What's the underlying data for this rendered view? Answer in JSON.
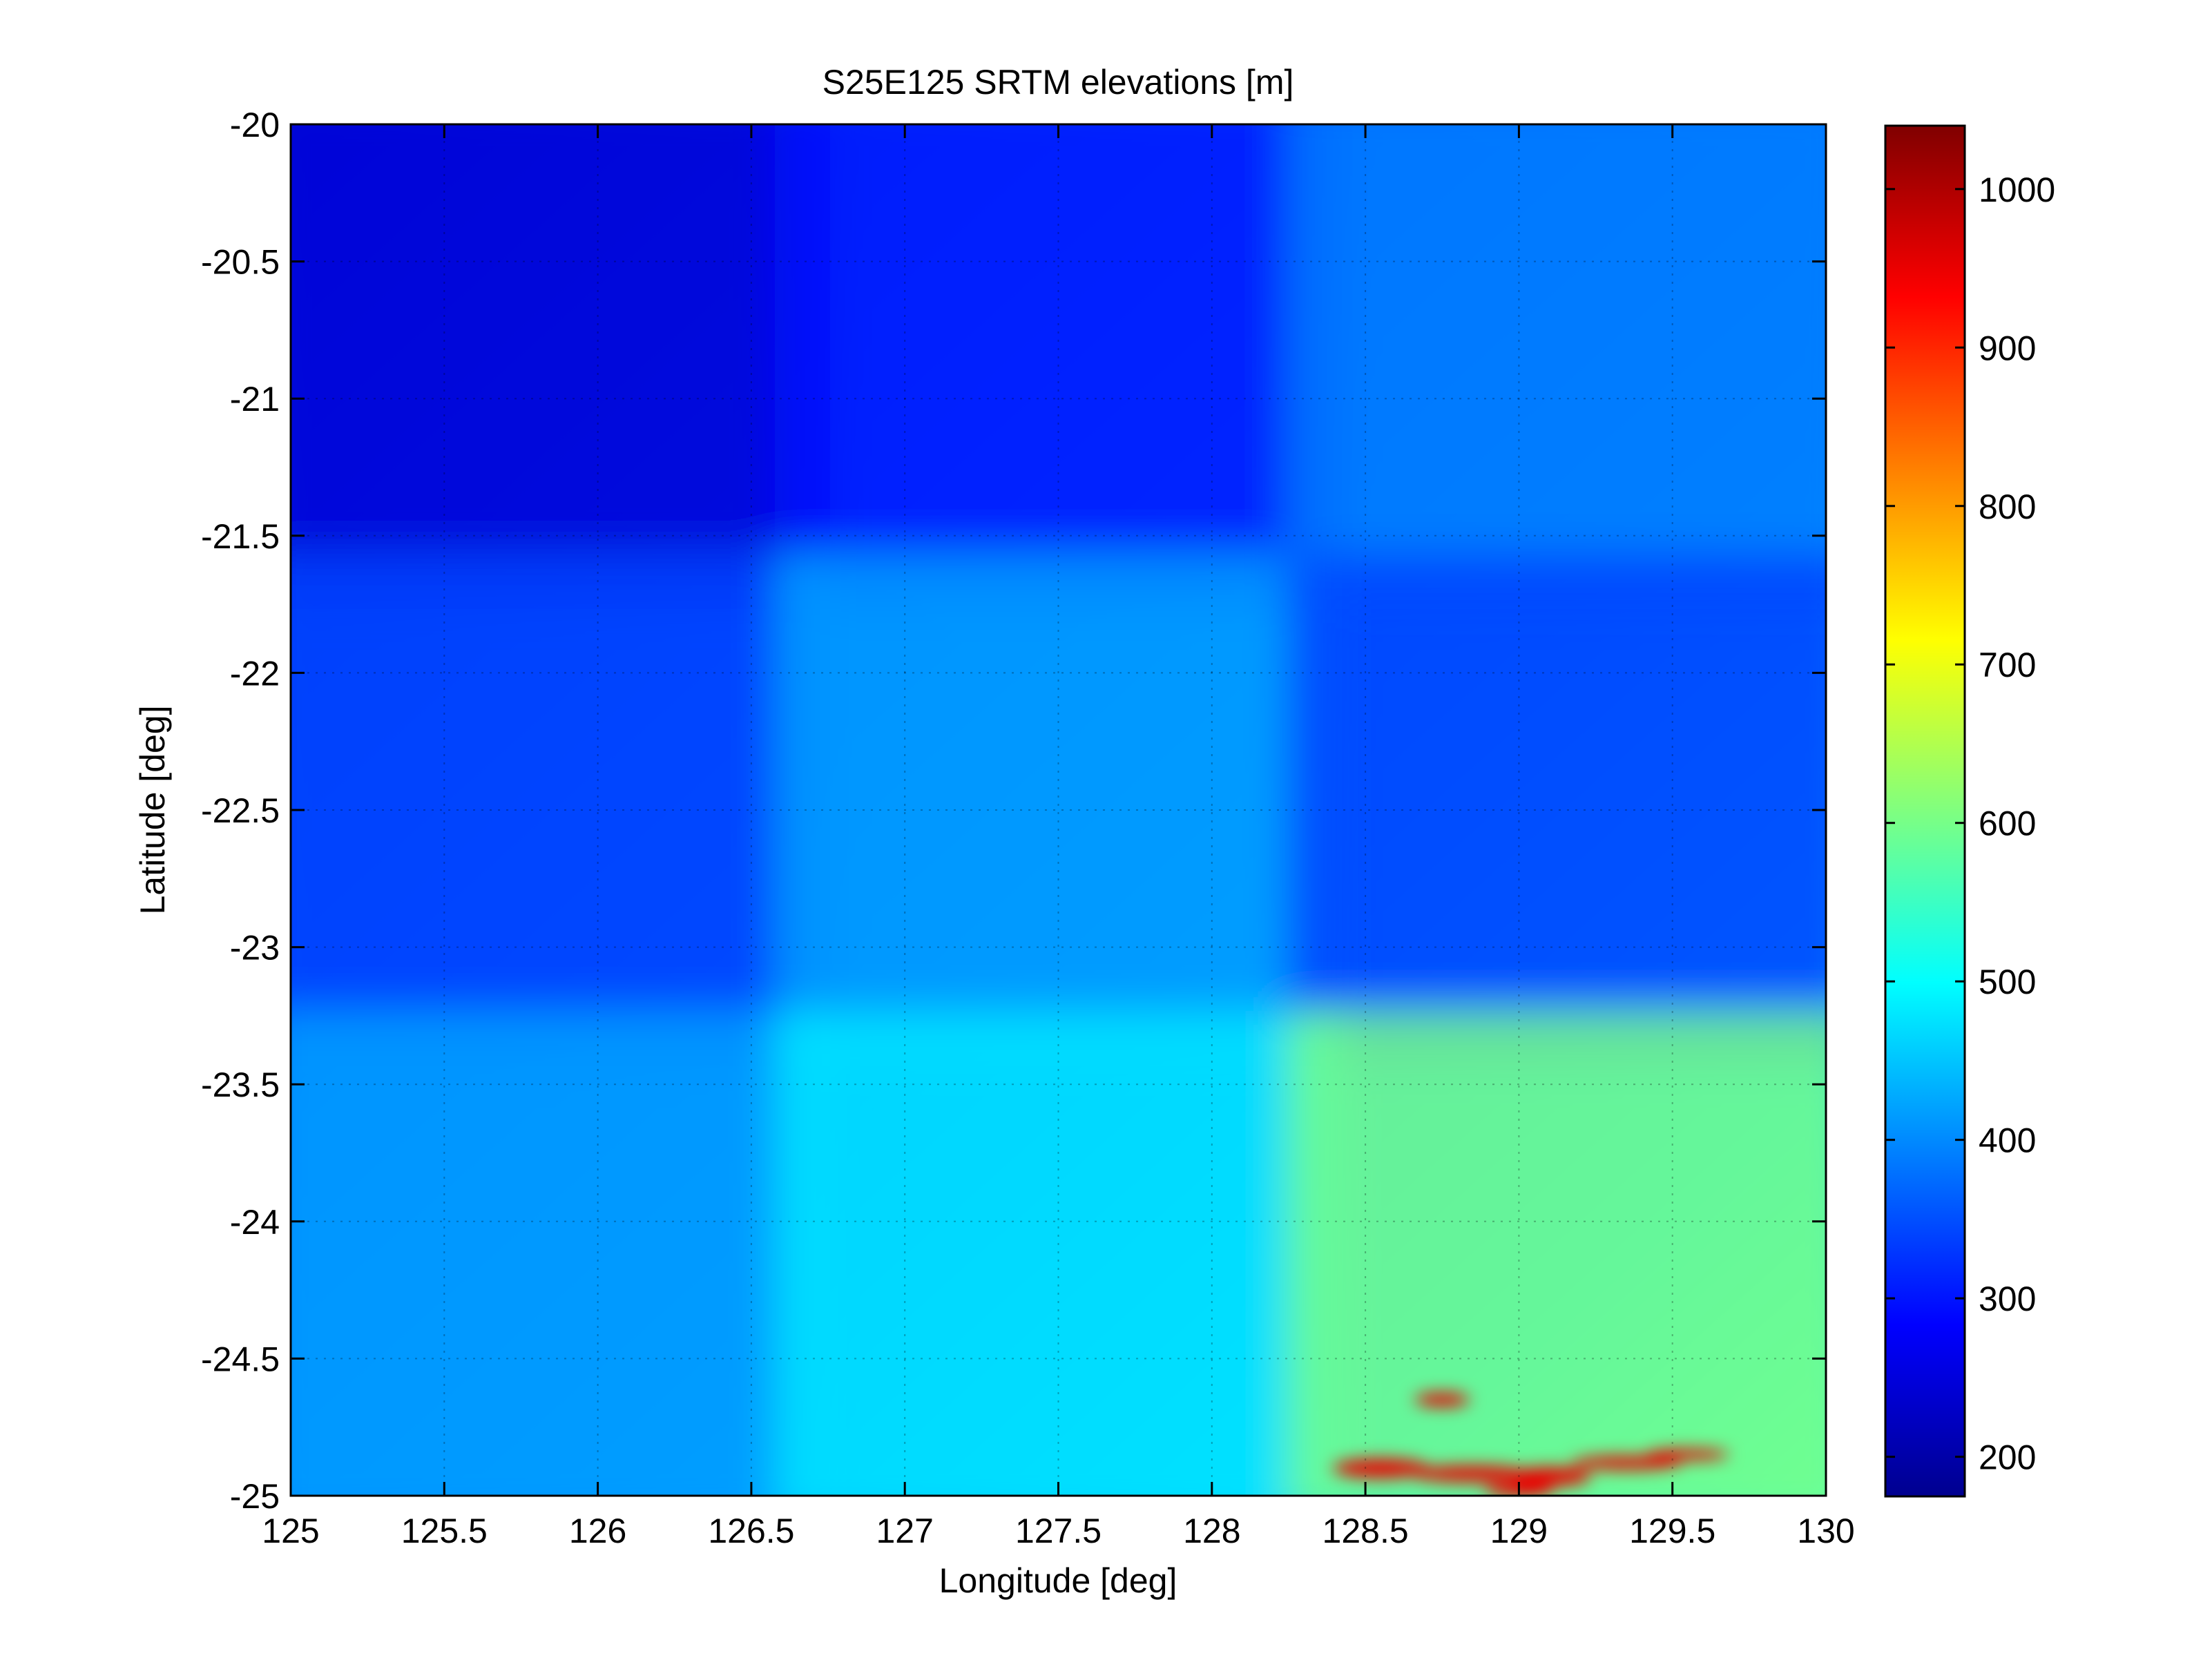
{
  "chart_data": {
    "type": "heatmap",
    "title": "S25E125 SRTM elevations [m]",
    "xlabel": "Longitude [deg]",
    "ylabel": "Latitude [deg]",
    "xlim": [
      125,
      130
    ],
    "ylim": [
      -25,
      -20
    ],
    "xticks": [
      125,
      125.5,
      126,
      126.5,
      127,
      127.5,
      128,
      128.5,
      129,
      129.5,
      130
    ],
    "xtick_labels": [
      "125",
      "125.5",
      "126",
      "126.5",
      "127",
      "127.5",
      "128",
      "128.5",
      "129",
      "129.5",
      "130"
    ],
    "yticks": [
      -20,
      -20.5,
      -21,
      -21.5,
      -22,
      -22.5,
      -23,
      -23.5,
      -24,
      -24.5,
      -25
    ],
    "ytick_labels": [
      "-20",
      "-20.5",
      "-21",
      "-21.5",
      "-22",
      "-22.5",
      "-23",
      "-23.5",
      "-24",
      "-24.5",
      "-25"
    ],
    "grid": true,
    "colormap": "jet",
    "colorbar": {
      "clim": [
        175,
        1040
      ],
      "ticks": [
        200,
        300,
        400,
        500,
        600,
        700,
        800,
        900,
        1000
      ],
      "tick_labels": [
        "200",
        "300",
        "400",
        "500",
        "600",
        "700",
        "800",
        "900",
        "1000"
      ]
    },
    "elevation_summary": [
      {
        "region": "north-west",
        "approx_elevation_m": 250
      },
      {
        "region": "north",
        "approx_elevation_m": 300
      },
      {
        "region": "north-east",
        "approx_elevation_m": 390
      },
      {
        "region": "west",
        "approx_elevation_m": 340
      },
      {
        "region": "centre",
        "approx_elevation_m": 420
      },
      {
        "region": "east",
        "approx_elevation_m": 340
      },
      {
        "region": "south-west",
        "approx_elevation_m": 420
      },
      {
        "region": "south",
        "approx_elevation_m": 480
      },
      {
        "region": "south-east",
        "approx_elevation_m": 600
      },
      {
        "region": "southern ridges near 128.7-129.4 E, -24.9 S",
        "approx_elevation_m": 950
      }
    ]
  }
}
